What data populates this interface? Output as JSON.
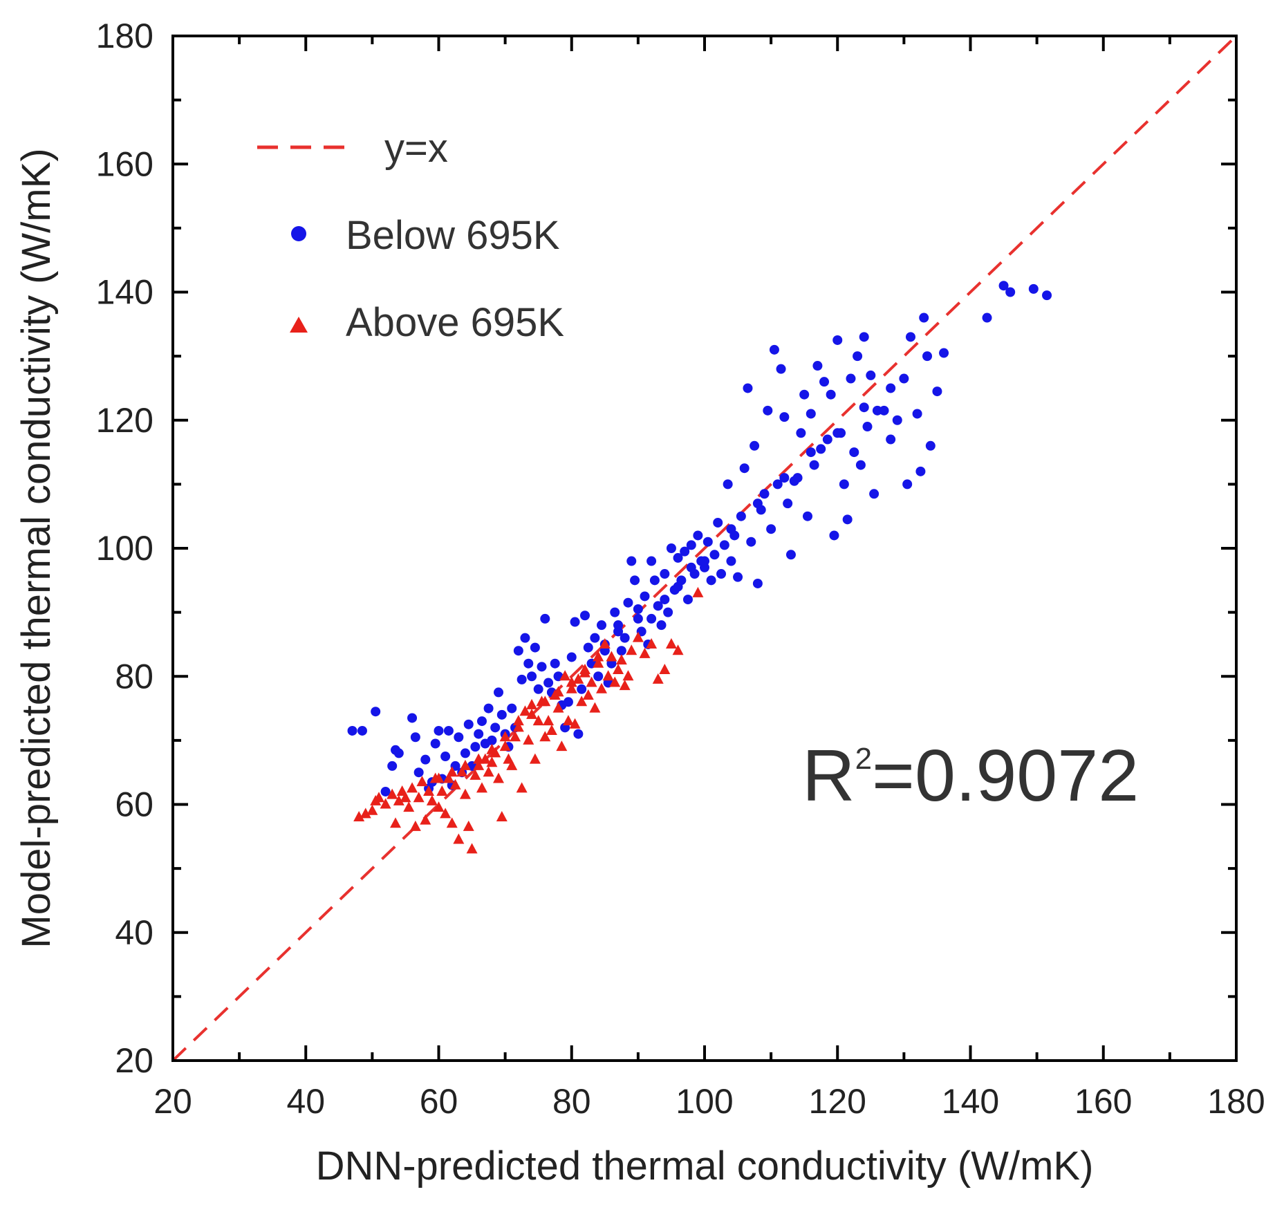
{
  "chart_data": {
    "type": "scatter",
    "xlabel": "DNN-predicted thermal conductivity (W/mK)",
    "ylabel": "Model-predicted thermal conductivity (W/mK)",
    "xlim": [
      20,
      180
    ],
    "ylim": [
      20,
      180
    ],
    "xticks": [
      "20",
      "40",
      "60",
      "80",
      "100",
      "120",
      "140",
      "160",
      "180"
    ],
    "yticks": [
      "20",
      "40",
      "60",
      "80",
      "100",
      "120",
      "140",
      "160",
      "180"
    ],
    "reference_line": {
      "name": "y=x",
      "color": "#e8312e",
      "style": "dashed"
    },
    "annotation": {
      "base": "R",
      "sup": "2",
      "rest": "=0.9072"
    },
    "legend_placement": "top-left",
    "series": [
      {
        "name": "Below 695K",
        "marker": "circle",
        "color": "#1515e8",
        "points": [
          [
            47,
            71.5
          ],
          [
            48.5,
            71.5
          ],
          [
            50.5,
            74.5
          ],
          [
            52,
            62
          ],
          [
            53,
            66
          ],
          [
            53.5,
            68.5
          ],
          [
            54,
            68
          ],
          [
            56,
            73.5
          ],
          [
            56.5,
            70.5
          ],
          [
            57,
            65
          ],
          [
            58,
            67
          ],
          [
            58.5,
            62.5
          ],
          [
            59,
            63.5
          ],
          [
            59.5,
            69.5
          ],
          [
            60,
            71.5
          ],
          [
            60.5,
            64
          ],
          [
            61,
            67.5
          ],
          [
            61.5,
            71.5
          ],
          [
            62,
            63
          ],
          [
            62.5,
            66
          ],
          [
            63,
            70.5
          ],
          [
            63.5,
            65
          ],
          [
            64,
            68
          ],
          [
            64.5,
            72.5
          ],
          [
            65,
            66
          ],
          [
            65.5,
            69
          ],
          [
            66,
            71
          ],
          [
            66.5,
            73
          ],
          [
            67,
            69.5
          ],
          [
            67.5,
            75
          ],
          [
            68,
            70
          ],
          [
            68.5,
            72
          ],
          [
            69,
            77.5
          ],
          [
            69.5,
            74
          ],
          [
            70,
            71
          ],
          [
            70.5,
            69
          ],
          [
            71,
            75
          ],
          [
            71.5,
            72
          ],
          [
            72,
            84
          ],
          [
            72.5,
            79.5
          ],
          [
            73,
            86
          ],
          [
            73.5,
            82
          ],
          [
            74,
            80
          ],
          [
            74.5,
            84.5
          ],
          [
            75,
            78
          ],
          [
            75.5,
            81.5
          ],
          [
            76,
            89
          ],
          [
            76.5,
            79
          ],
          [
            77,
            77.5
          ],
          [
            77.5,
            82
          ],
          [
            78,
            80
          ],
          [
            78.5,
            75.5
          ],
          [
            79,
            72
          ],
          [
            79.5,
            76
          ],
          [
            80,
            83
          ],
          [
            80.5,
            88.5
          ],
          [
            81,
            71
          ],
          [
            81.5,
            78
          ],
          [
            82,
            89.5
          ],
          [
            82.5,
            84.5
          ],
          [
            83,
            82
          ],
          [
            83.5,
            86
          ],
          [
            84,
            80
          ],
          [
            84.5,
            88
          ],
          [
            85,
            84
          ],
          [
            85.5,
            79
          ],
          [
            86,
            82
          ],
          [
            86.5,
            90
          ],
          [
            87,
            87
          ],
          [
            87.5,
            84
          ],
          [
            88,
            86
          ],
          [
            88.5,
            91.5
          ],
          [
            89,
            98
          ],
          [
            89.5,
            95
          ],
          [
            90,
            89
          ],
          [
            90.5,
            87
          ],
          [
            91,
            92.5
          ],
          [
            91.5,
            85
          ],
          [
            92,
            98
          ],
          [
            92.5,
            95
          ],
          [
            93,
            91
          ],
          [
            93.5,
            88
          ],
          [
            94,
            96
          ],
          [
            94.5,
            90
          ],
          [
            95,
            100
          ],
          [
            95.5,
            93.5
          ],
          [
            96,
            98.5
          ],
          [
            96.5,
            95
          ],
          [
            97,
            99.5
          ],
          [
            97.5,
            92
          ],
          [
            98,
            100.5
          ],
          [
            98.5,
            96
          ],
          [
            99,
            102
          ],
          [
            99.5,
            98
          ],
          [
            100,
            97
          ],
          [
            100.5,
            101
          ],
          [
            101,
            95
          ],
          [
            101.5,
            99
          ],
          [
            102,
            104
          ],
          [
            102.5,
            96
          ],
          [
            103,
            100.5
          ],
          [
            103.5,
            110
          ],
          [
            104,
            98
          ],
          [
            104.5,
            102
          ],
          [
            105,
            95.5
          ],
          [
            105.5,
            105
          ],
          [
            106,
            112.5
          ],
          [
            106.5,
            125
          ],
          [
            107,
            101
          ],
          [
            107.5,
            116
          ],
          [
            108,
            94.5
          ],
          [
            108.5,
            106
          ],
          [
            109,
            108.5
          ],
          [
            109.5,
            121.5
          ],
          [
            110,
            103
          ],
          [
            110.5,
            131
          ],
          [
            111,
            110
          ],
          [
            111.5,
            128
          ],
          [
            112,
            120.5
          ],
          [
            112.5,
            107
          ],
          [
            113,
            99
          ],
          [
            113.5,
            110.5
          ],
          [
            114,
            111
          ],
          [
            114.5,
            118
          ],
          [
            115,
            124
          ],
          [
            115.5,
            105
          ],
          [
            116,
            121
          ],
          [
            116.5,
            113
          ],
          [
            117,
            128.5
          ],
          [
            117.5,
            115.5
          ],
          [
            118,
            126
          ],
          [
            118.5,
            117
          ],
          [
            119,
            124
          ],
          [
            119.5,
            102
          ],
          [
            120,
            132.5
          ],
          [
            120.5,
            118
          ],
          [
            121,
            110
          ],
          [
            121.5,
            104.5
          ],
          [
            122,
            126.5
          ],
          [
            122.5,
            115
          ],
          [
            123,
            130
          ],
          [
            123.5,
            113
          ],
          [
            124,
            133
          ],
          [
            124.5,
            119
          ],
          [
            125,
            127
          ],
          [
            125.5,
            108.5
          ],
          [
            126,
            121.5
          ],
          [
            127,
            121.5
          ],
          [
            128,
            117
          ],
          [
            129,
            120
          ],
          [
            130,
            126.5
          ],
          [
            130.5,
            110
          ],
          [
            131,
            133
          ],
          [
            132,
            121
          ],
          [
            132.5,
            112
          ],
          [
            133,
            136
          ],
          [
            133.5,
            130
          ],
          [
            134,
            116
          ],
          [
            135,
            124.5
          ],
          [
            136,
            130.5
          ],
          [
            142.5,
            136
          ],
          [
            145,
            141
          ],
          [
            146,
            140
          ],
          [
            149.5,
            140.5
          ],
          [
            151.5,
            139.5
          ],
          [
            85,
            85
          ],
          [
            87,
            88
          ],
          [
            90,
            90.5
          ],
          [
            92,
            89
          ],
          [
            94,
            92
          ],
          [
            96,
            94
          ],
          [
            98,
            97
          ],
          [
            100,
            98
          ],
          [
            104,
            103
          ],
          [
            108,
            107
          ],
          [
            112,
            111
          ],
          [
            116,
            115
          ],
          [
            120,
            118
          ],
          [
            124,
            122
          ],
          [
            128,
            125
          ]
        ]
      },
      {
        "name": "Above 695K",
        "marker": "triangle",
        "color": "#e8211a",
        "points": [
          [
            48,
            58
          ],
          [
            49,
            58.5
          ],
          [
            50,
            59
          ],
          [
            50.5,
            60.5
          ],
          [
            51,
            61
          ],
          [
            52,
            60
          ],
          [
            53,
            61.5
          ],
          [
            53.5,
            57
          ],
          [
            54,
            60.5
          ],
          [
            54.5,
            62
          ],
          [
            55,
            61
          ],
          [
            55.5,
            59.5
          ],
          [
            56,
            62.5
          ],
          [
            56.5,
            56.5
          ],
          [
            57,
            61
          ],
          [
            57.5,
            63.5
          ],
          [
            58,
            57.5
          ],
          [
            58.5,
            62
          ],
          [
            59,
            60.5
          ],
          [
            59.5,
            64
          ],
          [
            60,
            59.5
          ],
          [
            60.5,
            62
          ],
          [
            61,
            58.5
          ],
          [
            61.5,
            64
          ],
          [
            62,
            57
          ],
          [
            62.5,
            63
          ],
          [
            63,
            54.5
          ],
          [
            63.5,
            65
          ],
          [
            64,
            61.5
          ],
          [
            64.5,
            56.5
          ],
          [
            65,
            53
          ],
          [
            65.5,
            64.5
          ],
          [
            66,
            66
          ],
          [
            66.5,
            62.5
          ],
          [
            67,
            67
          ],
          [
            67.5,
            65
          ],
          [
            68,
            66.5
          ],
          [
            68.5,
            68
          ],
          [
            69,
            64
          ],
          [
            69.5,
            58
          ],
          [
            70,
            69
          ],
          [
            70.5,
            67
          ],
          [
            71,
            66
          ],
          [
            71.5,
            70.5
          ],
          [
            72,
            72
          ],
          [
            72.5,
            62.5
          ],
          [
            73,
            74.5
          ],
          [
            73.5,
            70
          ],
          [
            74,
            75.5
          ],
          [
            74.5,
            67
          ],
          [
            75,
            73
          ],
          [
            75.5,
            76
          ],
          [
            76,
            70.5
          ],
          [
            76.5,
            73
          ],
          [
            77,
            71.5
          ],
          [
            77.5,
            77
          ],
          [
            78,
            75
          ],
          [
            78.5,
            69
          ],
          [
            79,
            80
          ],
          [
            79.5,
            73
          ],
          [
            80,
            78
          ],
          [
            80.5,
            72.5
          ],
          [
            81,
            79.5
          ],
          [
            81.5,
            76
          ],
          [
            82,
            81
          ],
          [
            82.5,
            77
          ],
          [
            83,
            79
          ],
          [
            83.5,
            75
          ],
          [
            84,
            82
          ],
          [
            84.5,
            78
          ],
          [
            85,
            85
          ],
          [
            85.5,
            80
          ],
          [
            86,
            83
          ],
          [
            86.5,
            79
          ],
          [
            87,
            81
          ],
          [
            87.5,
            82.5
          ],
          [
            88,
            78.5
          ],
          [
            88.5,
            80
          ],
          [
            89,
            84
          ],
          [
            90,
            86
          ],
          [
            91,
            83.5
          ],
          [
            92,
            85
          ],
          [
            93,
            79.5
          ],
          [
            94,
            81
          ],
          [
            95,
            85
          ],
          [
            96,
            84
          ],
          [
            99,
            93
          ],
          [
            60,
            64
          ],
          [
            62,
            65
          ],
          [
            64,
            66
          ],
          [
            66,
            67
          ],
          [
            68,
            68.5
          ],
          [
            70,
            70.5
          ],
          [
            72,
            73
          ],
          [
            74,
            74
          ],
          [
            76,
            76
          ],
          [
            78,
            77.5
          ],
          [
            80,
            79
          ],
          [
            82,
            80.5
          ],
          [
            84,
            83
          ]
        ]
      }
    ]
  }
}
